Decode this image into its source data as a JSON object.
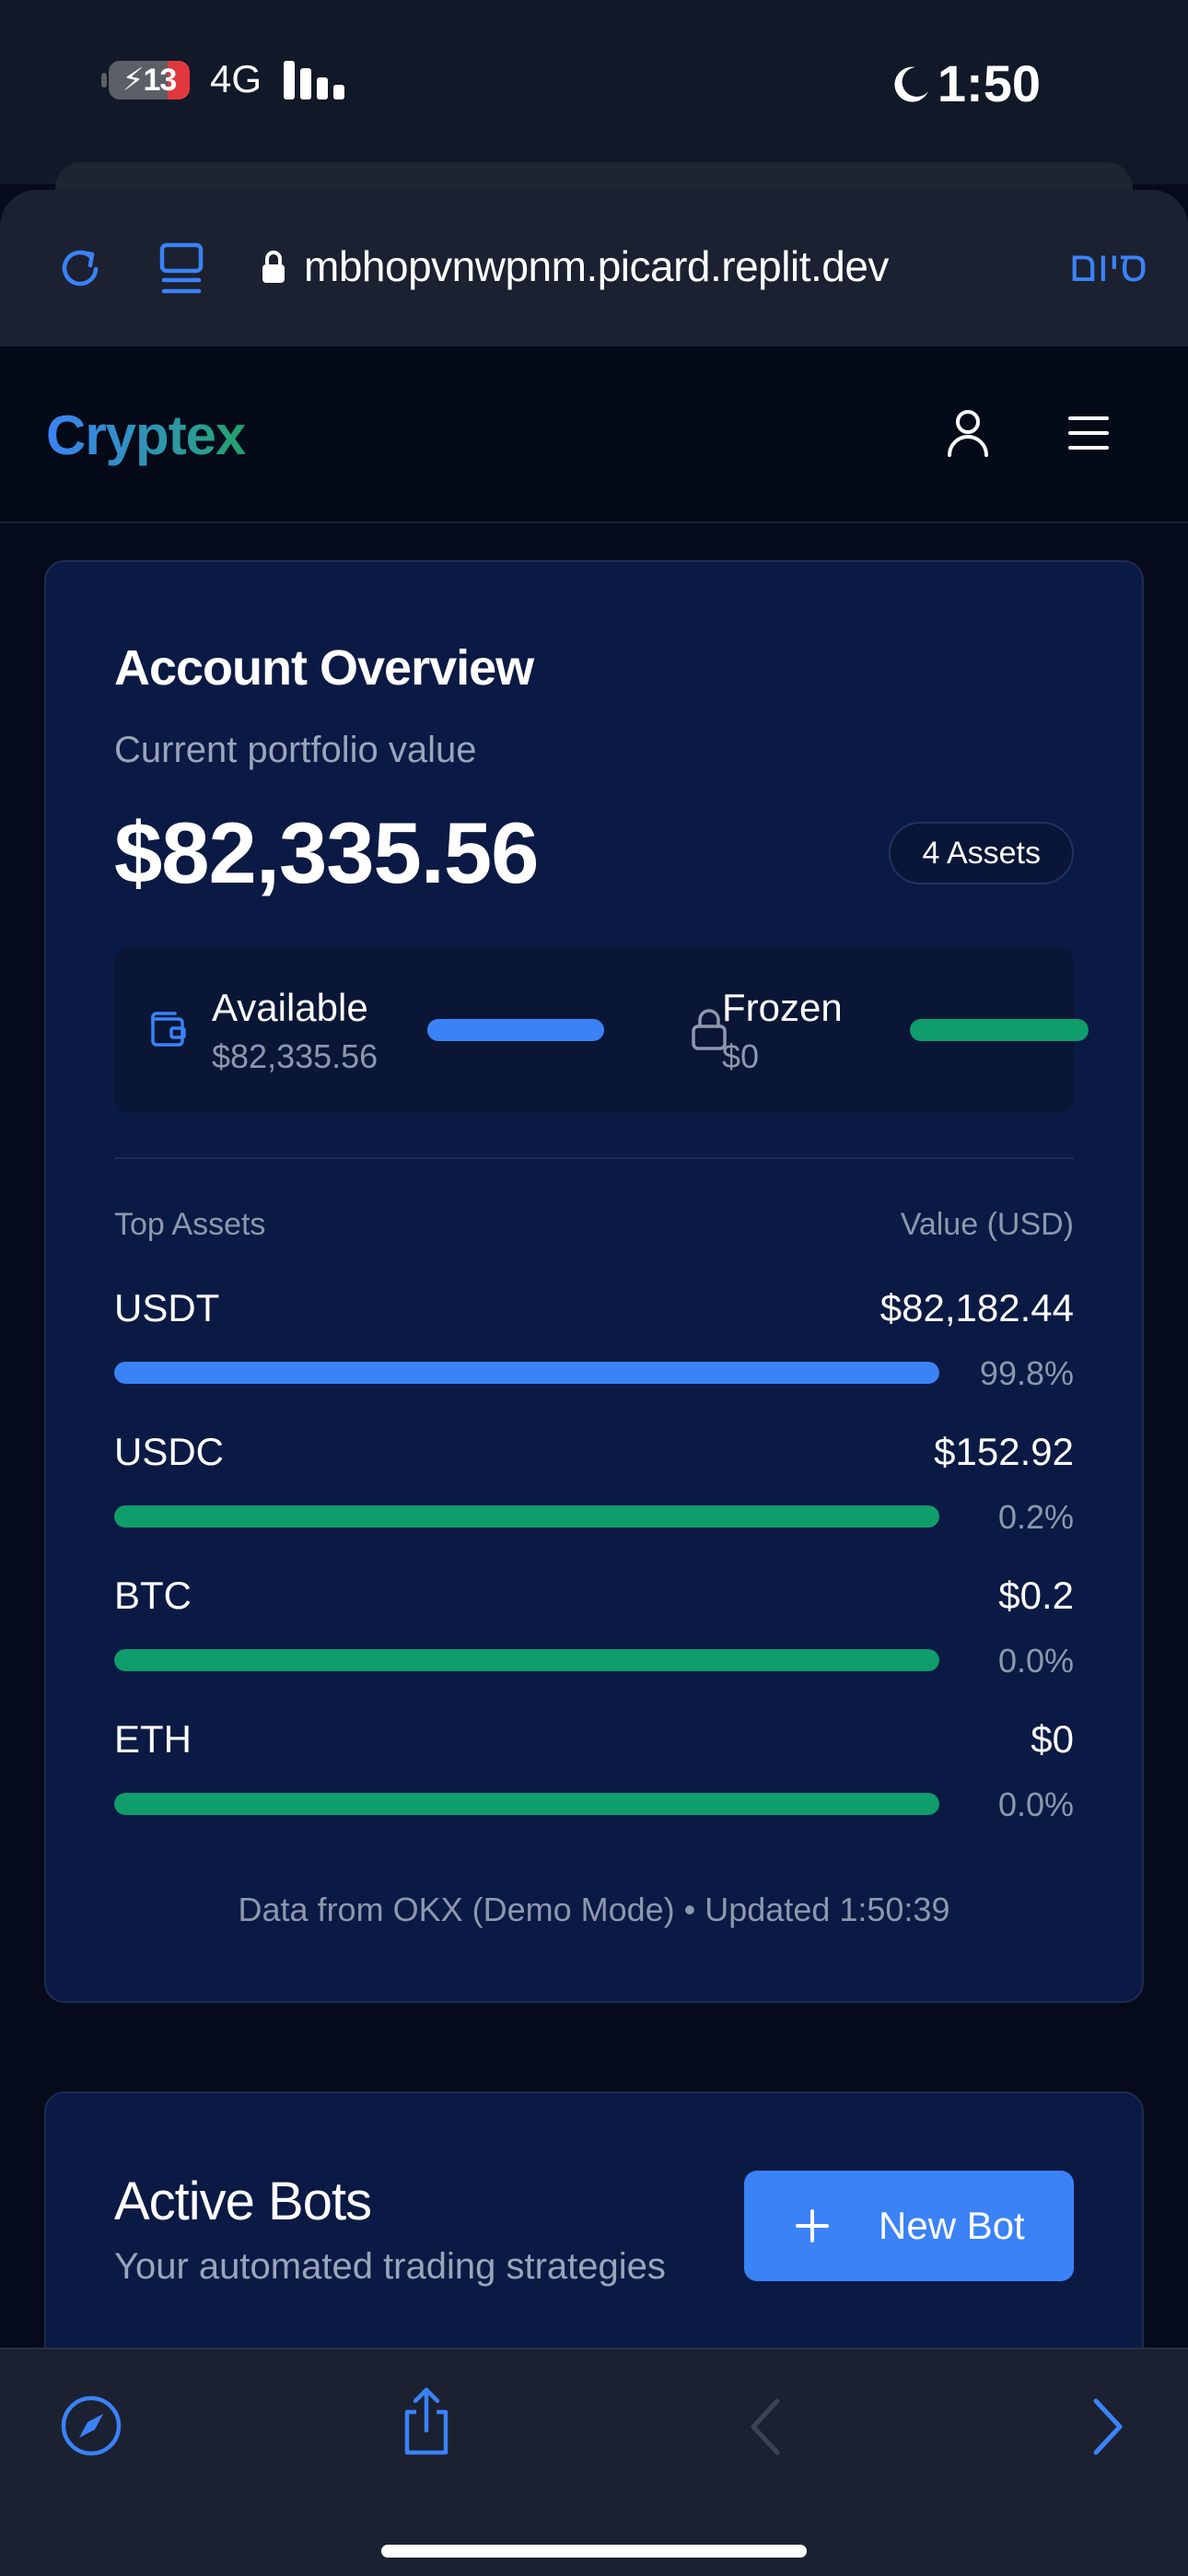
{
  "status_bar": {
    "battery": "13",
    "network": "4G",
    "time": "1:50"
  },
  "browser": {
    "url": "mbhopvnwpnm.picard.replit.dev",
    "done_label": "סיום"
  },
  "header": {
    "brand": "Cryptex"
  },
  "overview": {
    "title": "Account Overview",
    "subtitle": "Current portfolio value",
    "total_value": "$82,335.56",
    "assets_badge": "4 Assets",
    "available": {
      "label": "Available",
      "value": "$82,335.56"
    },
    "frozen": {
      "label": "Frozen",
      "value": "$0"
    },
    "top_assets_label": "Top Assets",
    "value_label": "Value (USD)",
    "assets": [
      {
        "name": "USDT",
        "value": "$82,182.44",
        "percent": "99.8%",
        "fill": 1.0,
        "color": "#3b82f6"
      },
      {
        "name": "USDC",
        "value": "$152.92",
        "percent": "0.2%",
        "fill": 1.0,
        "color": "#0f9d6b"
      },
      {
        "name": "BTC",
        "value": "$0.2",
        "percent": "0.0%",
        "fill": 1.0,
        "color": "#0f9d6b"
      },
      {
        "name": "ETH",
        "value": "$0",
        "percent": "0.0%",
        "fill": 1.0,
        "color": "#0f9d6b"
      }
    ],
    "footnote": "Data from OKX (Demo Mode) • Updated 1:50:39"
  },
  "bots": {
    "title": "Active Bots",
    "subtitle": "Your automated trading strategies",
    "new_bot_label": "New Bot"
  },
  "colors": {
    "accent_blue": "#3b82f6",
    "accent_green": "#0f9d6b",
    "card_bg": "#0b1a44",
    "page_bg": "#050b1a"
  },
  "icons": [
    "battery-icon",
    "signal-icon",
    "moon-icon",
    "reload-icon",
    "tabs-icon",
    "lock-icon",
    "user-icon",
    "menu-icon",
    "wallet-icon",
    "padlock-icon",
    "plus-icon",
    "compass-icon",
    "share-icon",
    "back-icon",
    "forward-icon"
  ]
}
